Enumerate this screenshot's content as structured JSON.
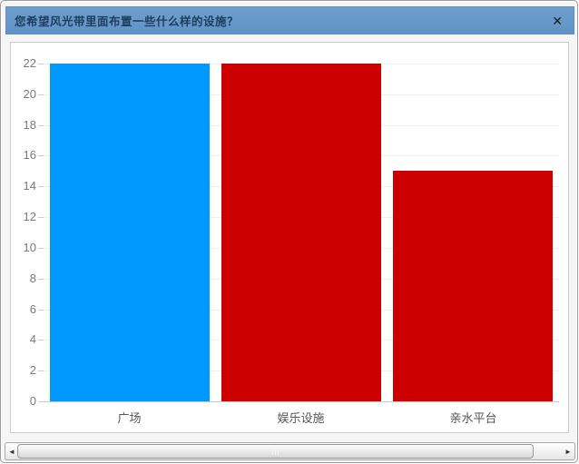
{
  "window": {
    "title": "您希望风光带里面布置一些什么样的设施？",
    "close_glyph": "✕"
  },
  "chart_data": {
    "type": "bar",
    "title": "您希望风光带里面布置一些什么样的设施？",
    "categories": [
      "广场",
      "娱乐设施",
      "亲水平台"
    ],
    "values": [
      22,
      22,
      15
    ],
    "bar_colors": [
      "#0099ff",
      "#cc0000",
      "#cc0000"
    ],
    "xlabel": "",
    "ylabel": "",
    "ylim": [
      0,
      22
    ],
    "ytick_step": 2,
    "grid": true,
    "legend": "none"
  },
  "scrollbar": {
    "orientation": "horizontal",
    "left_arrow_glyph": "◄",
    "right_arrow_glyph": "►"
  },
  "colors": {
    "titlebar_bg": "#6699cc",
    "titlebar_text": "#1c3e5e",
    "bar_blue": "#0099ff",
    "bar_red": "#cc0000",
    "axis_label": "#7a7a7a",
    "gridline": "#efefef",
    "panel_border": "#cccccc"
  }
}
